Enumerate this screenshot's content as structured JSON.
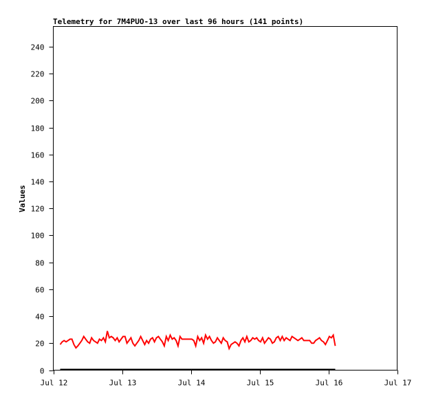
{
  "chart_data": {
    "type": "line",
    "title": "Telemetry for 7M4PUO-13 over last 96 hours (141 points)",
    "xlabel": "",
    "ylabel": "Values",
    "x_tick_labels": [
      "Jul 12",
      "Jul 13",
      "Jul 14",
      "Jul 15",
      "Jul 16",
      "Jul 17"
    ],
    "y_ticks": [
      0,
      20,
      40,
      60,
      80,
      100,
      120,
      140,
      160,
      180,
      200,
      220,
      240
    ],
    "ylim": [
      0,
      255
    ],
    "xlim": [
      "Jul 12",
      "Jul 17"
    ],
    "x_range": [
      "Jul 12 02:24",
      "Jul 16 02:24"
    ],
    "grid": false,
    "legend": "none",
    "series": [
      {
        "color": "#ff0000",
        "values": [
          19,
          21,
          22,
          21,
          22,
          23,
          23,
          19,
          16.5,
          18,
          20,
          22,
          25,
          23,
          21,
          20,
          24,
          22,
          21,
          20,
          23,
          22,
          24,
          21,
          29,
          24,
          25,
          24,
          22,
          24,
          21,
          23,
          25,
          25,
          20,
          22,
          24,
          20,
          18,
          20,
          22,
          25,
          22,
          19,
          22,
          20,
          23,
          24,
          21,
          24,
          25,
          23,
          21,
          18,
          25,
          22,
          26,
          23,
          24,
          22,
          18,
          25,
          23,
          23,
          23,
          23,
          23,
          23,
          22,
          18,
          25,
          22,
          24,
          20,
          26,
          23,
          25,
          22,
          20,
          21,
          24,
          22,
          20,
          24,
          22,
          21,
          16,
          19,
          20,
          21,
          20,
          18,
          22,
          24,
          21,
          25,
          21,
          22,
          24,
          23,
          24,
          22,
          21,
          24,
          20,
          22,
          24,
          23,
          20,
          21,
          24,
          25,
          22,
          25,
          22,
          24,
          23,
          22,
          25,
          24,
          23,
          22,
          23,
          24,
          22,
          22,
          22,
          22,
          20,
          20,
          22,
          23,
          24,
          22,
          21,
          19,
          22,
          25,
          24,
          26,
          18
        ]
      },
      {
        "color": "#000000",
        "constant_value": 0
      }
    ]
  }
}
